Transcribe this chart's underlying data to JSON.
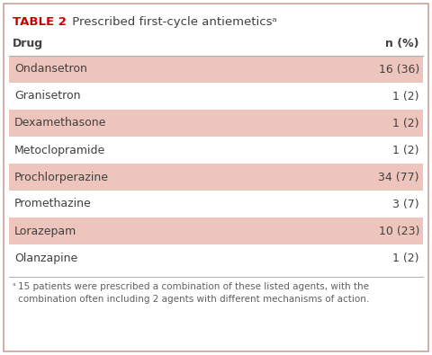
{
  "title_bold": "TABLE 2",
  "title_regular": " Prescribed first-cycle antiemeticsᵃ",
  "col_headers": [
    "Drug",
    "n (%)"
  ],
  "rows": [
    {
      "drug": "Ondansetron",
      "value": "16 (36)",
      "shaded": true
    },
    {
      "drug": "Granisetron",
      "value": "1 (2)",
      "shaded": false
    },
    {
      "drug": "Dexamethasone",
      "value": "1 (2)",
      "shaded": true
    },
    {
      "drug": "Metoclopramide",
      "value": "1 (2)",
      "shaded": false
    },
    {
      "drug": "Prochlorperazine",
      "value": "34 (77)",
      "shaded": true
    },
    {
      "drug": "Promethazine",
      "value": "3 (7)",
      "shaded": false
    },
    {
      "drug": "Lorazepam",
      "value": "10 (23)",
      "shaded": true
    },
    {
      "drug": "Olanzapine",
      "value": "1 (2)",
      "shaded": false
    }
  ],
  "footnote_sup": "ᵃ",
  "footnote_body": "15 patients were prescribed a combination of these listed agents, with the\ncombination often including 2 agents with different mechanisms of action.",
  "shaded_color": "#edc5bc",
  "white_color": "#ffffff",
  "background_color": "#ffffff",
  "border_color": "#d0a098",
  "title_color": "#cc0000",
  "header_line_color": "#b0b0b0",
  "text_color": "#404040",
  "footnote_color": "#606060"
}
